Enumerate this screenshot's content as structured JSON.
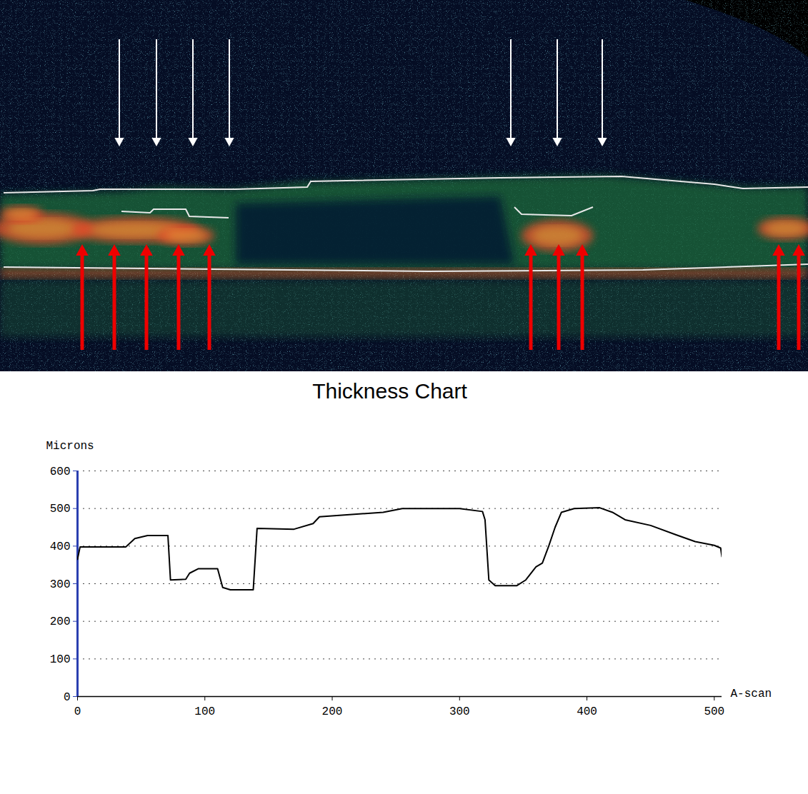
{
  "chart_data": {
    "type": "line",
    "title": "Thickness Chart",
    "y_label": "Microns",
    "x_label": "A-scan",
    "x": [
      0,
      2,
      38,
      45,
      55,
      71,
      73,
      85,
      88,
      95,
      110,
      114,
      120,
      138,
      141,
      170,
      185,
      190,
      240,
      255,
      300,
      318,
      320,
      323,
      328,
      345,
      352,
      360,
      365,
      370,
      375,
      380,
      390,
      410,
      420,
      430,
      450,
      470,
      485,
      500,
      505,
      506
    ],
    "values": [
      365,
      398,
      398,
      420,
      428,
      428,
      310,
      312,
      328,
      340,
      340,
      290,
      284,
      284,
      447,
      445,
      460,
      478,
      490,
      500,
      500,
      492,
      470,
      310,
      295,
      295,
      310,
      345,
      355,
      400,
      450,
      490,
      500,
      502,
      490,
      470,
      455,
      430,
      412,
      402,
      395,
      372
    ],
    "color": "#000000",
    "xlim": [
      0,
      506
    ],
    "ylim": [
      0,
      600
    ],
    "xticks": [
      0,
      100,
      200,
      300,
      400,
      500
    ],
    "yticks": [
      0,
      100,
      200,
      300,
      400,
      500,
      600
    ],
    "grid": true
  }
}
